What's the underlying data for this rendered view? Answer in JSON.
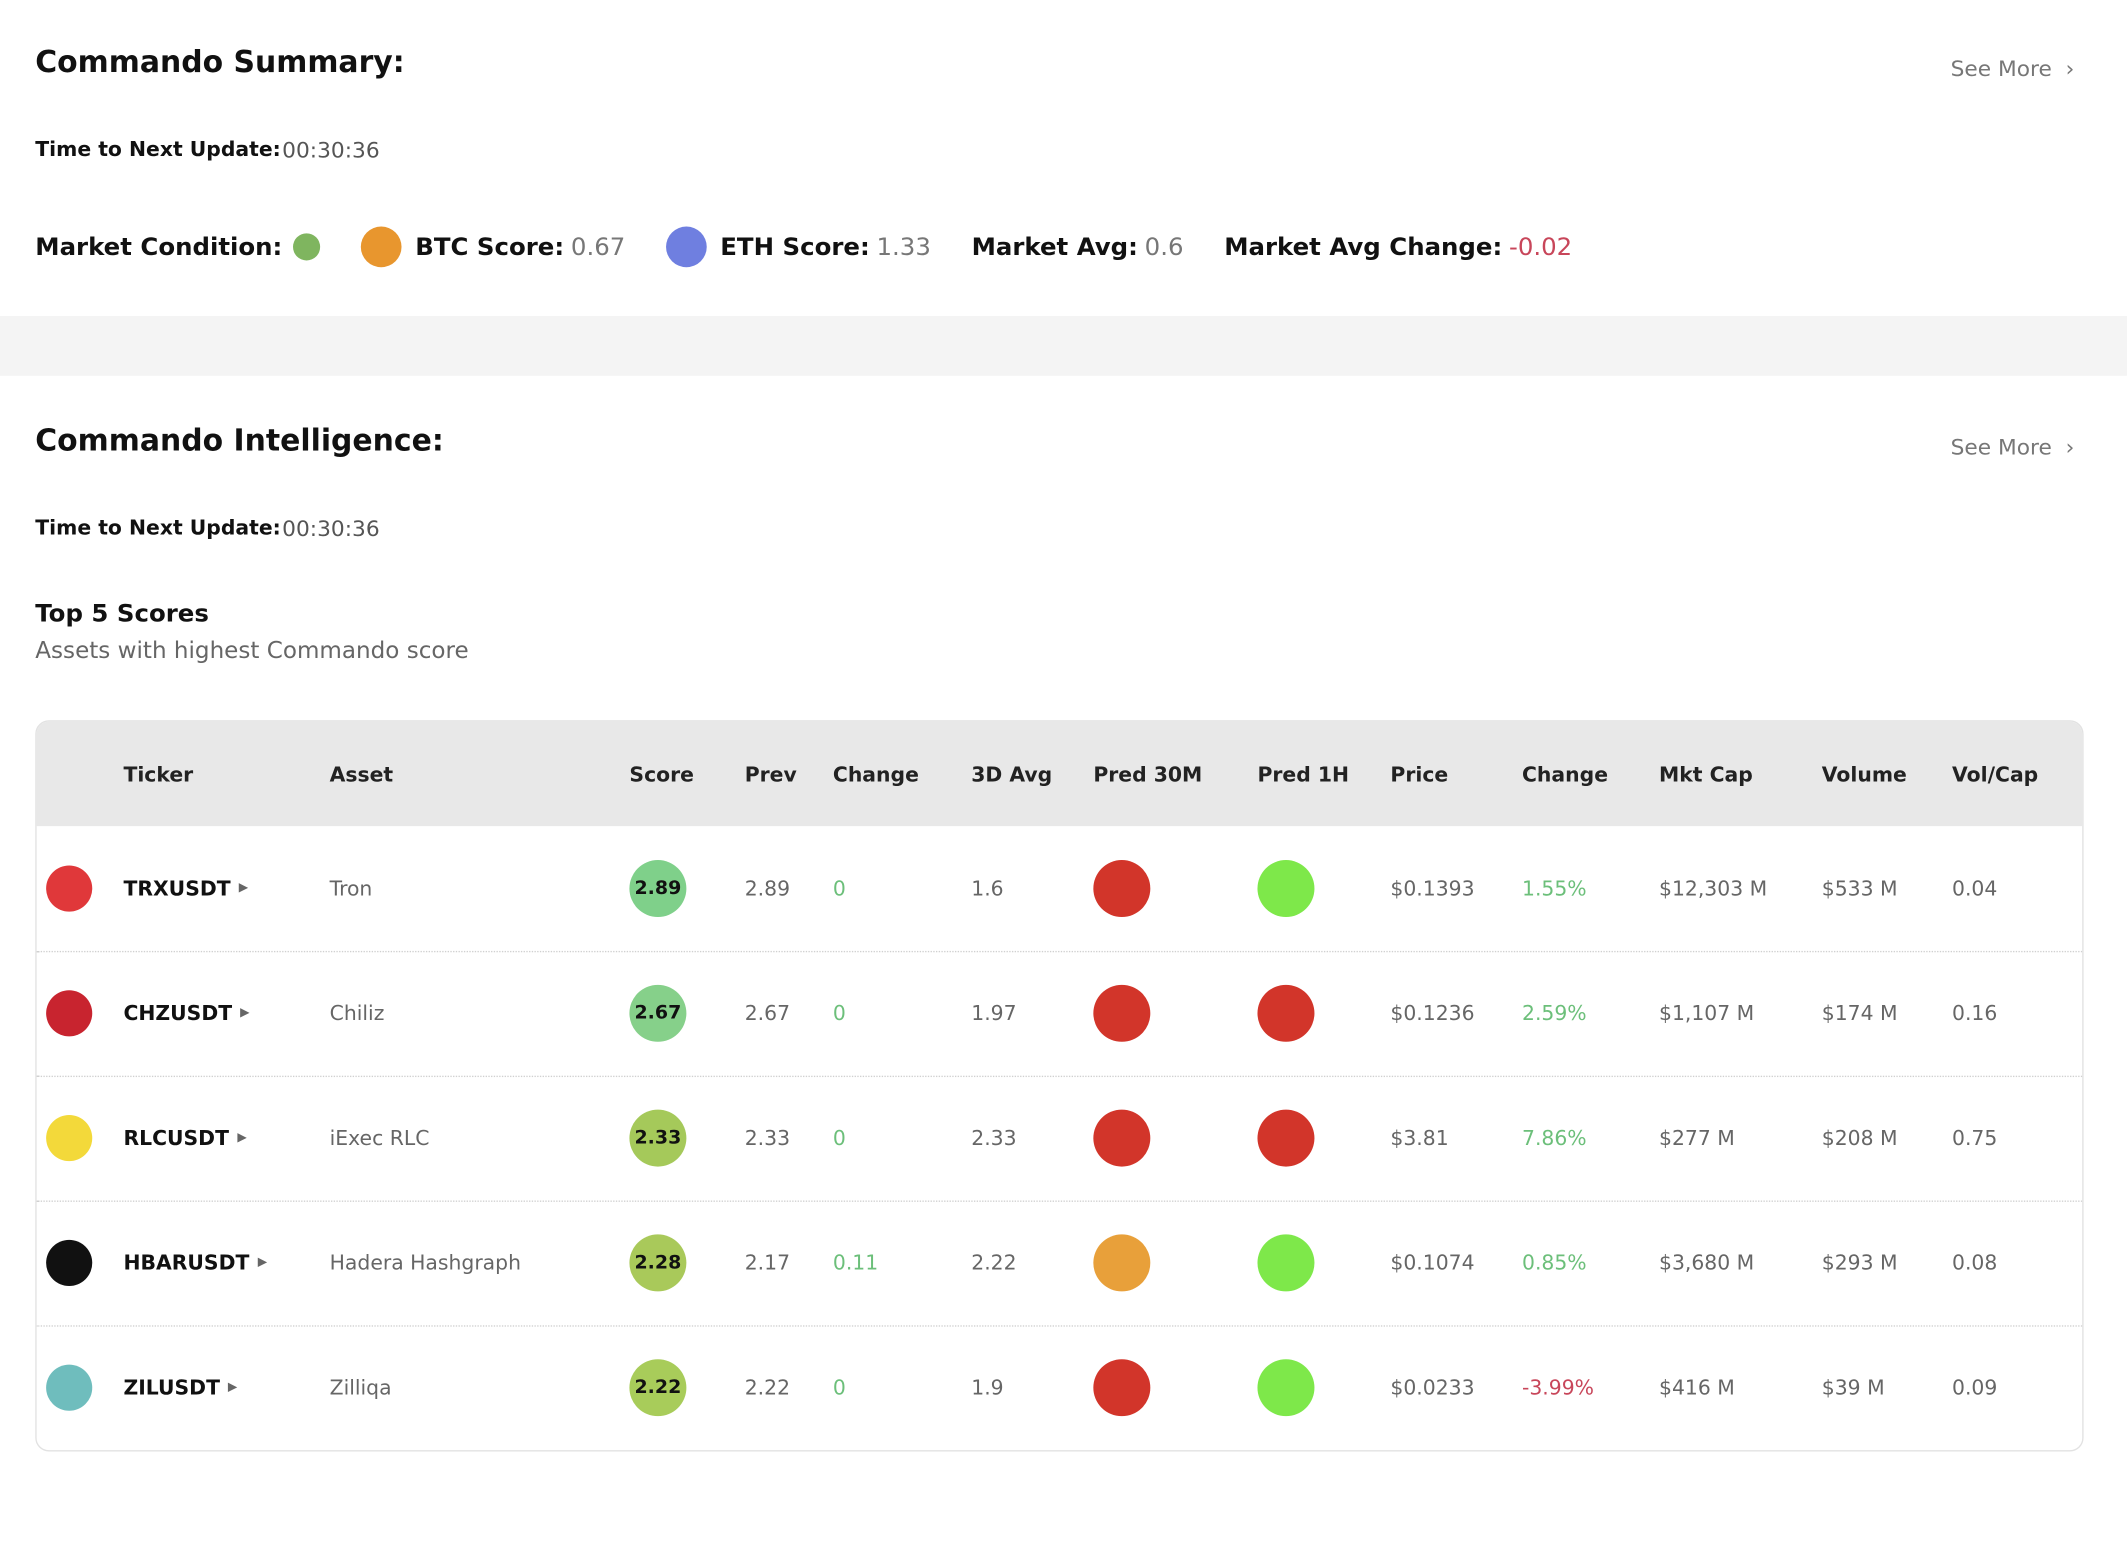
{
  "summary": {
    "title": "Commando Summary:",
    "see_more": "See More",
    "update_label": "Time to Next Update:",
    "update_value": "00:30:36",
    "market_condition": {
      "label": "Market Condition:",
      "color": "#7fb55f"
    },
    "metrics": [
      {
        "label": "BTC Score:",
        "value": "0.67",
        "icon_color": "#e8962e",
        "value_color": "#777777"
      },
      {
        "label": "ETH Score:",
        "value": "1.33",
        "icon_color": "#6f7fe0",
        "value_color": "#777777"
      },
      {
        "label": "Market Avg:",
        "value": "0.6",
        "value_color": "#777777"
      },
      {
        "label": "Market Avg Change:",
        "value": "-0.02",
        "value_color": "#c8465a"
      }
    ]
  },
  "intelligence": {
    "title": "Commando Intelligence:",
    "see_more": "See More",
    "update_label": "Time to Next Update:",
    "update_value": "00:30:36",
    "section_title": "Top 5 Scores",
    "section_subtitle": "Assets with highest Commando score",
    "table": {
      "headers": [
        "Ticker",
        "Asset",
        "Score",
        "Prev",
        "Change",
        "3D Avg",
        "Pred 30M",
        "Pred 1H",
        "Price",
        "Change",
        "Mkt Cap",
        "Volume",
        "Vol/Cap"
      ],
      "rows": [
        {
          "ticker": "TRXUSDT",
          "asset": "Tron",
          "icon_color": "#e0383a",
          "score": "2.89",
          "score_color": "#7fd08a",
          "prev": "2.89",
          "change": "0",
          "avg_3d": "1.6",
          "pred_30m": "#d2352a",
          "pred_1h": "#7ee84a",
          "price": "$0.1393",
          "price_change": "1.55%",
          "price_change_color": "#6cbf7a",
          "mkt_cap": "$12,303 M",
          "volume": "$533 M",
          "vol_cap": "0.04"
        },
        {
          "ticker": "CHZUSDT",
          "asset": "Chiliz",
          "icon_color": "#c8242f",
          "score": "2.67",
          "score_color": "#86d08a",
          "prev": "2.67",
          "change": "0",
          "avg_3d": "1.97",
          "pred_30m": "#d2352a",
          "pred_1h": "#d2352a",
          "price": "$0.1236",
          "price_change": "2.59%",
          "price_change_color": "#6cbf7a",
          "mkt_cap": "$1,107 M",
          "volume": "$174 M",
          "vol_cap": "0.16"
        },
        {
          "ticker": "RLCUSDT",
          "asset": "iExec RLC",
          "icon_color": "#f3d93a",
          "score": "2.33",
          "score_color": "#a5c95a",
          "prev": "2.33",
          "change": "0",
          "avg_3d": "2.33",
          "pred_30m": "#d2352a",
          "pred_1h": "#d2352a",
          "price": "$3.81",
          "price_change": "7.86%",
          "price_change_color": "#6cbf7a",
          "mkt_cap": "$277 M",
          "volume": "$208 M",
          "vol_cap": "0.75"
        },
        {
          "ticker": "HBARUSDT",
          "asset": "Hadera Hashgraph",
          "icon_color": "#111111",
          "score": "2.28",
          "score_color": "#a9c95a",
          "prev": "2.17",
          "change": "0.11",
          "avg_3d": "2.22",
          "pred_30m": "#e8a03a",
          "pred_1h": "#7ee84a",
          "price": "$0.1074",
          "price_change": "0.85%",
          "price_change_color": "#6cbf7a",
          "mkt_cap": "$3,680 M",
          "volume": "$293 M",
          "vol_cap": "0.08"
        },
        {
          "ticker": "ZILUSDT",
          "asset": "Zilliqa",
          "icon_color": "#6fbdbd",
          "score": "2.22",
          "score_color": "#a8cc5a",
          "prev": "2.22",
          "change": "0",
          "avg_3d": "1.9",
          "pred_30m": "#d2352a",
          "pred_1h": "#7ee84a",
          "price": "$0.0233",
          "price_change": "-3.99%",
          "price_change_color": "#c8465a",
          "mkt_cap": "$416 M",
          "volume": "$39 M",
          "vol_cap": "0.09"
        }
      ]
    }
  }
}
